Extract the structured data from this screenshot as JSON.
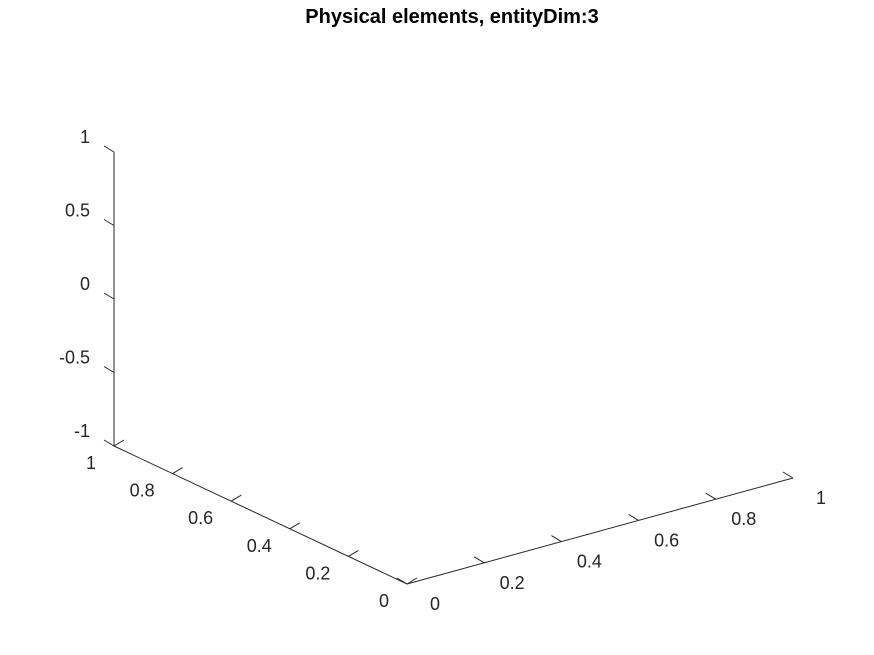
{
  "chart_data": {
    "type": "scatter",
    "title": "Physical elements, entityDim:3",
    "xlabel": "",
    "ylabel": "",
    "zlabel": "",
    "xlim": [
      0,
      1
    ],
    "ylim": [
      0,
      1
    ],
    "zlim": [
      -1,
      1
    ],
    "x_ticks": [
      "0",
      "0.2",
      "0.4",
      "0.6",
      "0.8",
      "1"
    ],
    "y_ticks": [
      "0",
      "0.2",
      "0.4",
      "0.6",
      "0.8",
      "1"
    ],
    "z_ticks": [
      "-1",
      "-0.5",
      "0",
      "0.5",
      "1"
    ],
    "grid": false,
    "series": [],
    "axis_color": "#262626"
  }
}
